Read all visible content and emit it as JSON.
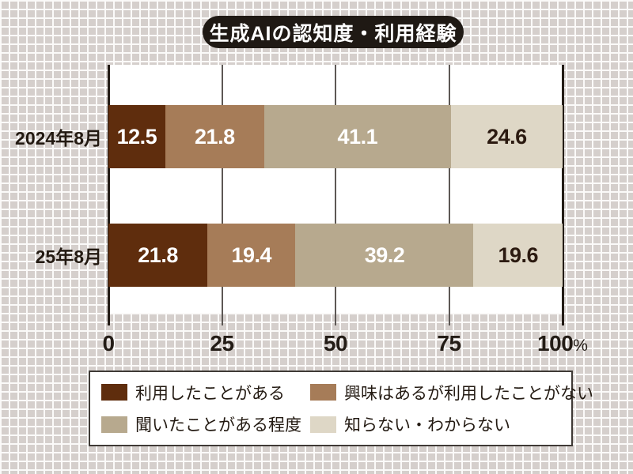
{
  "title": "生成AIの認知度・利用経験",
  "chart_data": {
    "type": "bar",
    "stacked": true,
    "orientation": "horizontal",
    "title": "生成AIの認知度・利用経験",
    "categories": [
      "2024年8月",
      "25年8月"
    ],
    "series": [
      {
        "name": "利用したことがある",
        "color": "#5f2d0d",
        "text_color": "#ffffff",
        "values": [
          12.5,
          21.8
        ]
      },
      {
        "name": "興味はあるが利用したことがない",
        "color": "#a67c58",
        "text_color": "#ffffff",
        "values": [
          21.8,
          19.4
        ]
      },
      {
        "name": "聞いたことがある程度",
        "color": "#b7a98e",
        "text_color": "#ffffff",
        "values": [
          41.1,
          39.2
        ]
      },
      {
        "name": "知らない・わからない",
        "color": "#ded7c6",
        "text_color": "#2b1a10",
        "values": [
          24.6,
          19.6
        ]
      }
    ],
    "xlim": [
      0,
      100
    ],
    "x_ticks": [
      "0",
      "25",
      "50",
      "75",
      "100%"
    ],
    "grid": true,
    "legend_position": "bottom",
    "colors": {
      "background_grid_cell": "#d5cfcc",
      "background_grid_line": "#fbfaf9",
      "plot_background": "#ffffff",
      "axis_line": "#231c16",
      "grid_line": "#5d5855",
      "title_pill": "#1f1914",
      "title_text": "#ffffff",
      "label_text": "#231a12"
    }
  }
}
